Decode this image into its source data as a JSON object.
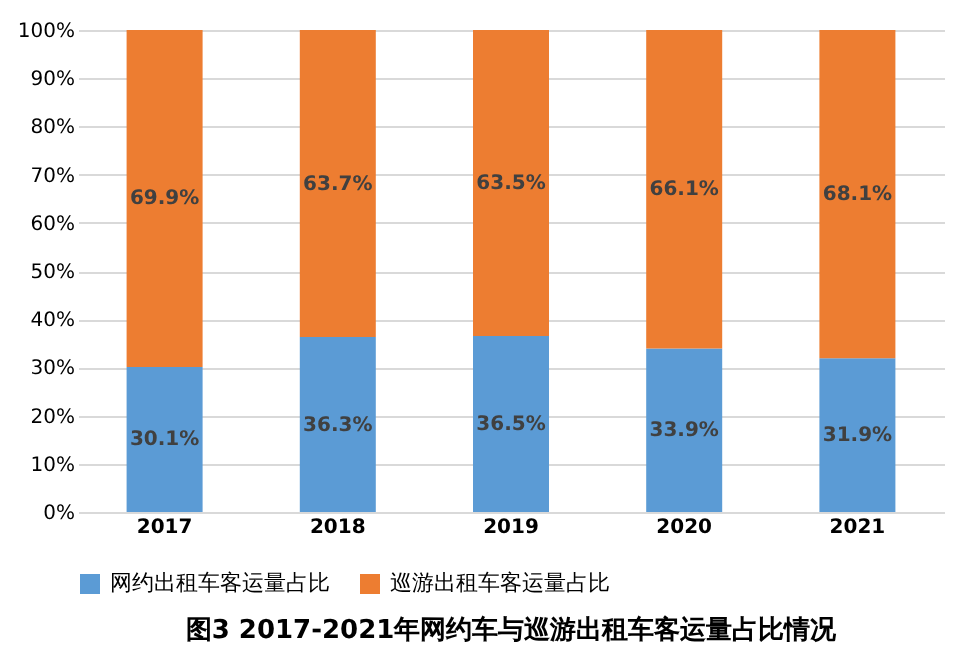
{
  "chart_data": {
    "type": "bar",
    "stacked": true,
    "title": "图3   2017-2021年网约车与巡游出租车客运量占比情况",
    "categories": [
      "2017",
      "2018",
      "2019",
      "2020",
      "2021"
    ],
    "series": [
      {
        "name": "网约出租车客运量占比",
        "color": "#5b9bd5",
        "values": [
          30.1,
          36.3,
          36.5,
          33.9,
          31.9
        ],
        "value_labels": [
          "30.1%",
          "36.3%",
          "36.5%",
          "33.9%",
          "31.9%"
        ]
      },
      {
        "name": "巡游出租车客运量占比",
        "color": "#ed7d31",
        "values": [
          69.9,
          63.7,
          63.5,
          66.1,
          68.1
        ],
        "value_labels": [
          "69.9%",
          "63.7%",
          "63.5%",
          "66.1%",
          "68.1%"
        ]
      }
    ],
    "ylim": [
      0,
      100
    ],
    "yticks": [
      {
        "value": 0,
        "label": "0%"
      },
      {
        "value": 10,
        "label": "10%"
      },
      {
        "value": 20,
        "label": "20%"
      },
      {
        "value": 30,
        "label": "30%"
      },
      {
        "value": 40,
        "label": "40%"
      },
      {
        "value": 50,
        "label": "50%"
      },
      {
        "value": 60,
        "label": "60%"
      },
      {
        "value": 70,
        "label": "70%"
      },
      {
        "value": 80,
        "label": "80%"
      },
      {
        "value": 90,
        "label": "90%"
      },
      {
        "value": 100,
        "label": "100%"
      }
    ],
    "grid": "y",
    "legend": "bottom"
  }
}
